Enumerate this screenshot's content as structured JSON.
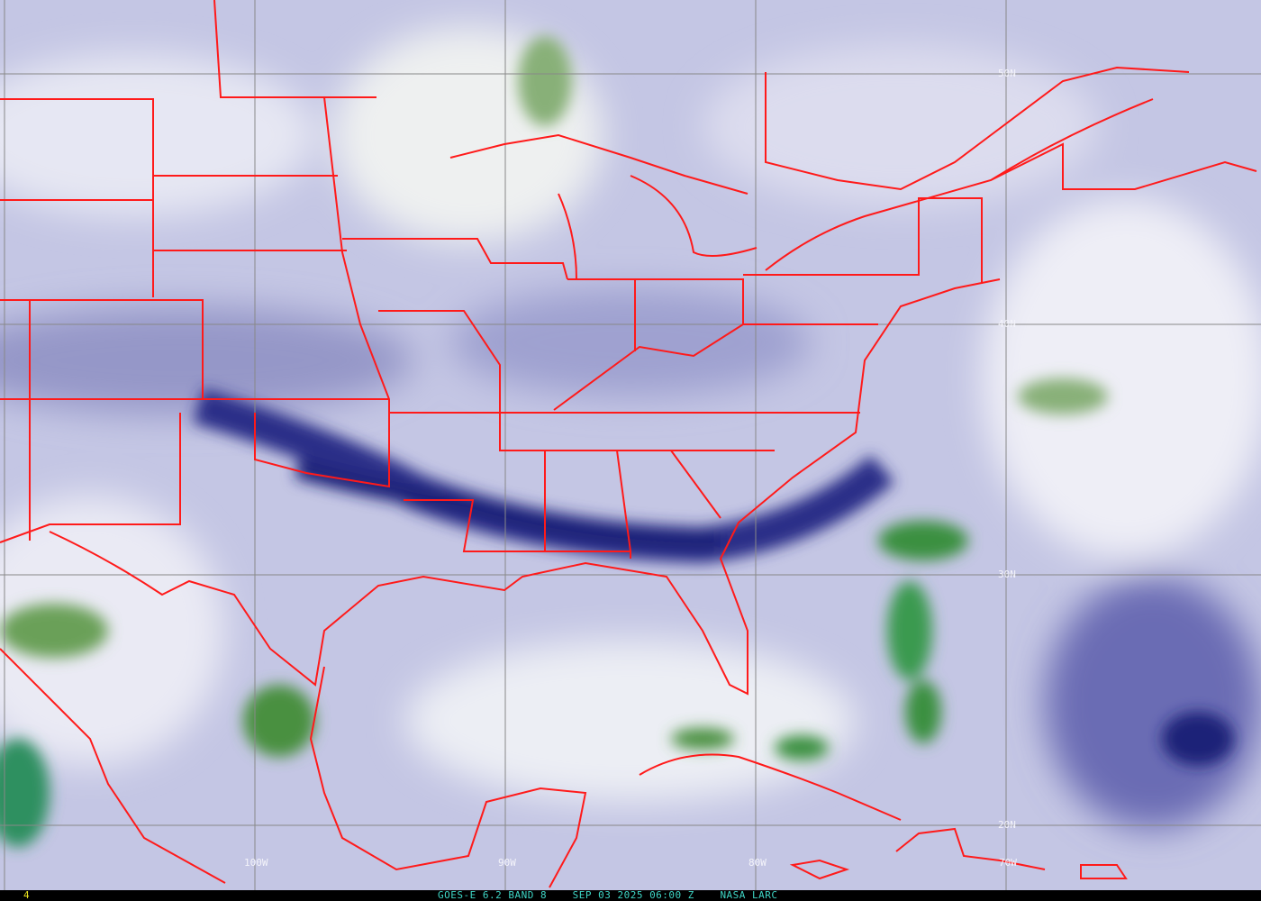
{
  "image": {
    "type": "satellite water vapor imagery",
    "colors": {
      "dry": "#1a1f7a",
      "mid": "#a9abd6",
      "moist": "#f2f2f8",
      "cloud": "#3a8a30",
      "borders": "#ff1a1a",
      "grid": "#888888"
    }
  },
  "grid_labels": {
    "lat": [
      "50N",
      "40N",
      "30N",
      "20N"
    ],
    "lon": [
      "100W",
      "90W",
      "80W",
      "70W"
    ]
  },
  "status_bar": {
    "frame": "4",
    "satellite": "GOES-E 6.2 BAND 8",
    "datetime": "SEP 03 2025 06:00 Z",
    "source": "NASA LARC"
  }
}
